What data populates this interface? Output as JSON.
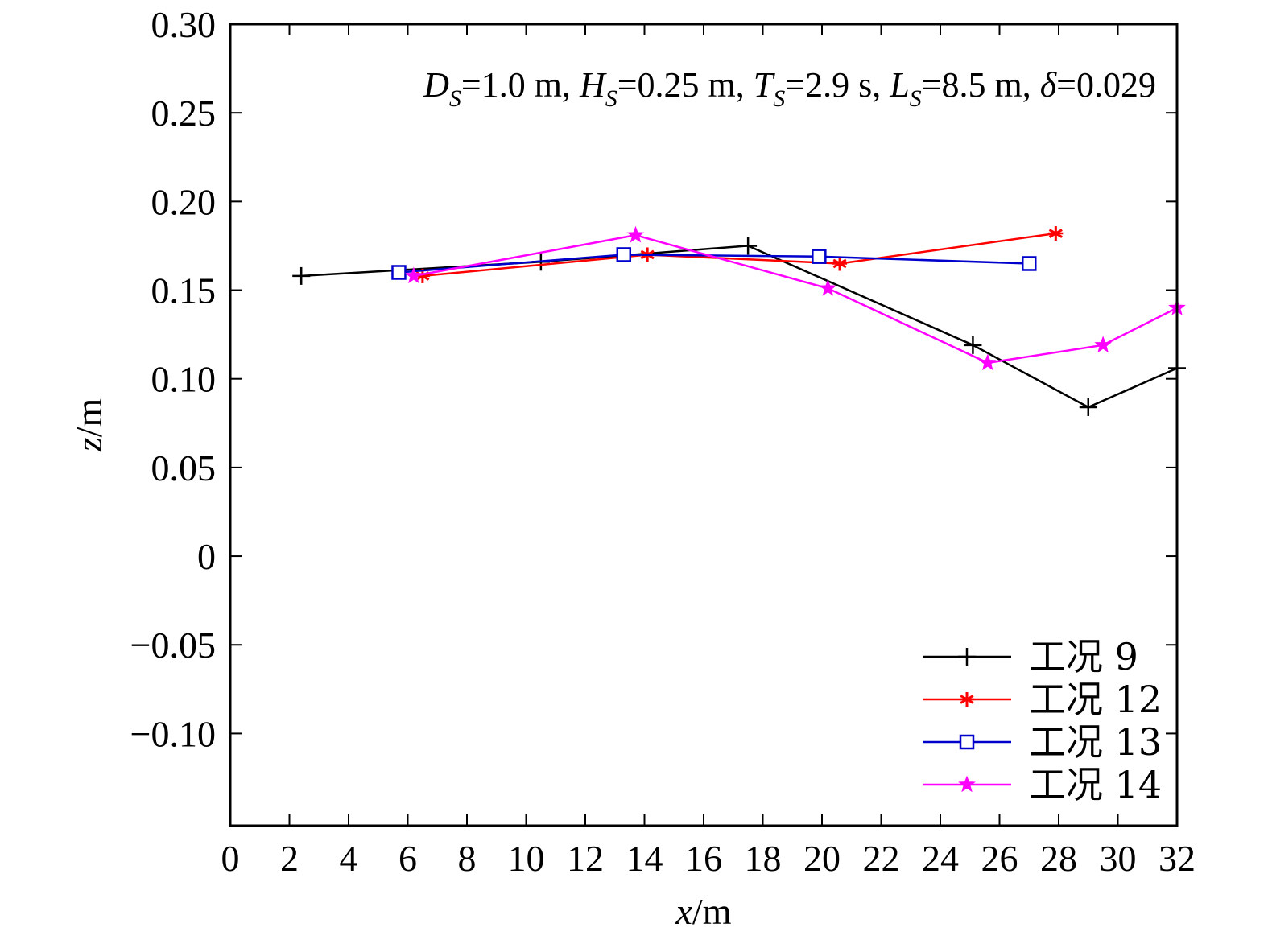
{
  "chart_data": {
    "type": "line",
    "xlabel": {
      "var": "x",
      "unit": "/m"
    },
    "ylabel": {
      "var": "z",
      "unit": "/m"
    },
    "xlim": [
      0,
      32
    ],
    "ylim": [
      -0.152,
      0.3
    ],
    "x_ticks": [
      0,
      2,
      4,
      6,
      8,
      10,
      12,
      14,
      16,
      18,
      20,
      22,
      24,
      26,
      28,
      30,
      32
    ],
    "x_tick_labels": [
      "0",
      "2",
      "4",
      "6",
      "8",
      "10",
      "12",
      "14",
      "16",
      "18",
      "20",
      "22",
      "24",
      "26",
      "28",
      "30",
      "32"
    ],
    "y_ticks": [
      -0.1,
      -0.05,
      0,
      0.05,
      0.1,
      0.15,
      0.2,
      0.25,
      0.3
    ],
    "y_tick_labels": [
      "−0.10",
      "−0.05",
      "0",
      "0.05",
      "0.10",
      "0.15",
      "0.20",
      "0.25",
      "0.30"
    ],
    "annotation": [
      {
        "t": "D",
        "i": true
      },
      {
        "t": "S",
        "sub": true
      },
      {
        "t": "=1.0 m, "
      },
      {
        "t": "H",
        "i": true
      },
      {
        "t": "S",
        "sub": true
      },
      {
        "t": "=0.25 m, "
      },
      {
        "t": "T",
        "i": true
      },
      {
        "t": "S",
        "sub": true
      },
      {
        "t": "=2.9 s, "
      },
      {
        "t": "L",
        "i": true
      },
      {
        "t": "S",
        "sub": true
      },
      {
        "t": "=8.5 m, "
      },
      {
        "t": "δ",
        "i": true
      },
      {
        "t": "=0.029"
      }
    ],
    "legend_position": "bottom-right",
    "series": [
      {
        "name": "工况 9",
        "color": "#000000",
        "marker": "plus",
        "x": [
          2.4,
          10.5,
          17.5,
          25.1,
          29.0,
          32.0
        ],
        "y": [
          0.158,
          0.166,
          0.175,
          0.119,
          0.084,
          0.106
        ]
      },
      {
        "name": "工况 12",
        "color": "#ff0000",
        "marker": "asterisk",
        "x": [
          6.5,
          14.1,
          20.6,
          27.9
        ],
        "y": [
          0.158,
          0.17,
          0.165,
          0.182
        ]
      },
      {
        "name": "工况 13",
        "color": "#0000cc",
        "marker": "square",
        "x": [
          5.7,
          13.3,
          19.9,
          27.0
        ],
        "y": [
          0.16,
          0.17,
          0.169,
          0.165
        ]
      },
      {
        "name": "工况 14",
        "color": "#ff00ff",
        "marker": "star",
        "x": [
          6.2,
          13.7,
          20.2,
          25.6,
          29.5,
          32.0
        ],
        "y": [
          0.158,
          0.181,
          0.151,
          0.109,
          0.119,
          0.14
        ]
      }
    ]
  }
}
